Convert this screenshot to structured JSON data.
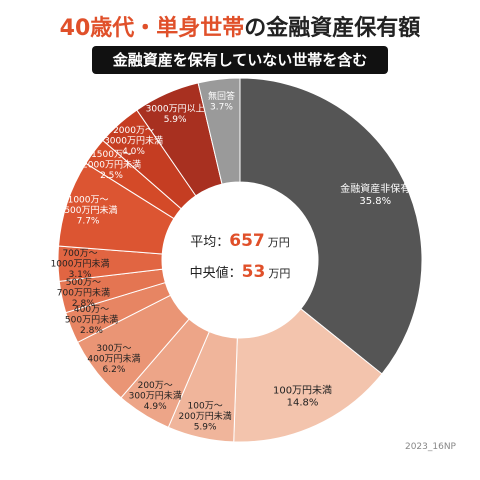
{
  "header": {
    "title_accent": "40歳代・単身世帯",
    "title_rest": "の金融資産保有額",
    "subtitle": "金融資産を保有していない世帯を含む"
  },
  "center": {
    "mean_label": "平均：",
    "mean_value": "657",
    "mean_unit": "万円",
    "median_label": "中央値：",
    "median_value": "53",
    "median_unit": "万円"
  },
  "footer": "2023_16NP",
  "colors": {
    "accent": "#e0502a",
    "dark": "#555555",
    "gray": "#9a9a9a"
  },
  "chart_data": {
    "type": "pie",
    "title": "40歳代・単身世帯の金融資産保有額",
    "subtitle": "金融資産を保有していない世帯を含む",
    "unit": "%",
    "slices": [
      {
        "label": "金融資産非保有",
        "value": 35.8,
        "color": "#555555"
      },
      {
        "label": "100万円未満",
        "value": 14.8,
        "color": "#f3c4ad"
      },
      {
        "label": "100万～200万円未満",
        "value": 5.9,
        "color": "#f0b59b"
      },
      {
        "label": "200万～300万円未満",
        "value": 4.9,
        "color": "#eda588"
      },
      {
        "label": "300万～400万円未満",
        "value": 6.2,
        "color": "#ea9575"
      },
      {
        "label": "400万～500万円未満",
        "value": 2.8,
        "color": "#e78563"
      },
      {
        "label": "500万～700万円未満",
        "value": 2.8,
        "color": "#e47552"
      },
      {
        "label": "700万～1000万円未満",
        "value": 3.1,
        "color": "#e16542"
      },
      {
        "label": "1000万～1500万円未満",
        "value": 7.7,
        "color": "#dc5532"
      },
      {
        "label": "1500万～2000万円未満",
        "value": 2.5,
        "color": "#d44a28"
      },
      {
        "label": "2000万～3000万円未満",
        "value": 4.0,
        "color": "#c53d22"
      },
      {
        "label": "3000万円以上",
        "value": 5.9,
        "color": "#a83020"
      },
      {
        "label": "無回答",
        "value": 3.7,
        "color": "#9a9a9a"
      }
    ]
  }
}
